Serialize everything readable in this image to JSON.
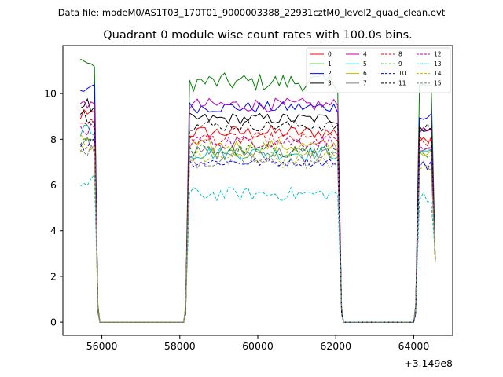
{
  "header": {
    "filename": "Data file: modeM0/AS1T03_170T01_9000003388_22931cztM0_level2_quad_clean.evt"
  },
  "chart_data": {
    "type": "line",
    "title": "Quadrant 0 module wise count rates with 100.0s bins.",
    "xlabel": "",
    "ylabel": "",
    "x_offset_label": "+3.149e8",
    "xlim": [
      55000,
      65000
    ],
    "ylim": [
      -0.58,
      12.1
    ],
    "xticks": [
      56000,
      58000,
      60000,
      62000,
      64000
    ],
    "xtick_labels": [
      "56000",
      "58000",
      "60000",
      "62000",
      "64000"
    ],
    "yticks": [
      0,
      2,
      4,
      6,
      8,
      10
    ],
    "ytick_labels": [
      "0",
      "2",
      "4",
      "6",
      "8",
      "10"
    ],
    "grid": false,
    "legend_position": "top-right",
    "time_segments": [
      {
        "start": 55450,
        "end": 55900
      },
      {
        "start": 58150,
        "end": 62150
      },
      {
        "start": 64050,
        "end": 64550
      }
    ],
    "series": [
      {
        "name": "0",
        "color": "#ff0000",
        "dash": "solid",
        "level": 8.3,
        "noise": 0.3,
        "edge_start": 9.0,
        "edge_end": 8.0
      },
      {
        "name": "1",
        "color": "#008000",
        "dash": "solid",
        "level": 10.5,
        "noise": 0.4,
        "edge_start": 11.3,
        "edge_end": 10.3
      },
      {
        "name": "2",
        "color": "#0000ff",
        "dash": "solid",
        "level": 9.4,
        "noise": 0.25,
        "edge_start": 10.2,
        "edge_end": 8.9
      },
      {
        "name": "3",
        "color": "#000000",
        "dash": "solid",
        "level": 8.9,
        "noise": 0.25,
        "edge_start": 9.5,
        "edge_end": 8.5
      },
      {
        "name": "4",
        "color": "#bf00bf",
        "dash": "solid",
        "level": 9.5,
        "noise": 0.3,
        "edge_start": 9.6,
        "edge_end": 8.3
      },
      {
        "name": "5",
        "color": "#00bfbf",
        "dash": "solid",
        "level": 7.4,
        "noise": 0.3,
        "edge_start": 8.4,
        "edge_end": 7.5
      },
      {
        "name": "6",
        "color": "#bfbf00",
        "dash": "solid",
        "level": 7.7,
        "noise": 0.3,
        "edge_start": 8.0,
        "edge_end": 7.3
      },
      {
        "name": "7",
        "color": "#808080",
        "dash": "solid",
        "level": 7.4,
        "noise": 0.3,
        "edge_start": 7.9,
        "edge_end": 7.4
      },
      {
        "name": "8",
        "color": "#ff0000",
        "dash": "dashed",
        "level": 8.0,
        "noise": 0.3,
        "edge_start": 8.8,
        "edge_end": 7.9
      },
      {
        "name": "9",
        "color": "#008000",
        "dash": "dashed",
        "level": 7.5,
        "noise": 0.3,
        "edge_start": 8.0,
        "edge_end": 7.2
      },
      {
        "name": "10",
        "color": "#0000ff",
        "dash": "dashed",
        "level": 7.0,
        "noise": 0.2,
        "edge_start": 7.8,
        "edge_end": 6.9
      },
      {
        "name": "11",
        "color": "#000000",
        "dash": "dashed",
        "level": 8.6,
        "noise": 0.25,
        "edge_start": 9.0,
        "edge_end": 8.5
      },
      {
        "name": "12",
        "color": "#bf00bf",
        "dash": "dashed",
        "level": 7.9,
        "noise": 0.3,
        "edge_start": 8.4,
        "edge_end": 7.5
      },
      {
        "name": "13",
        "color": "#00bfbf",
        "dash": "dashed",
        "level": 5.6,
        "noise": 0.3,
        "edge_start": 6.2,
        "edge_end": 5.5
      },
      {
        "name": "14",
        "color": "#bfbf00",
        "dash": "dashed",
        "level": 7.2,
        "noise": 0.3,
        "edge_start": 7.6,
        "edge_end": 6.9
      },
      {
        "name": "15",
        "color": "#808080",
        "dash": "dashed",
        "level": 7.0,
        "noise": 0.3,
        "edge_start": 7.5,
        "edge_end": 6.8
      }
    ]
  }
}
